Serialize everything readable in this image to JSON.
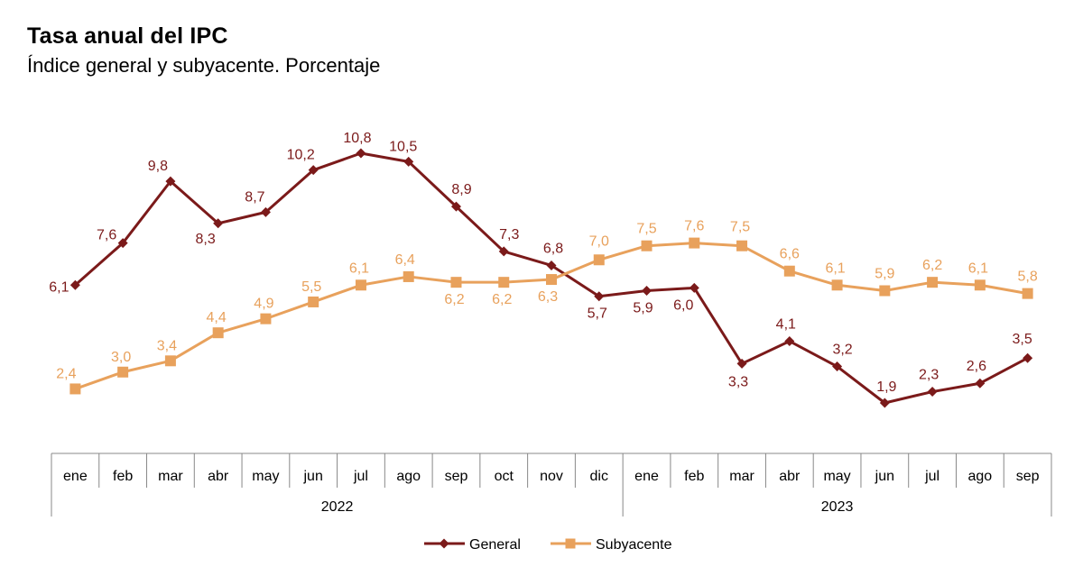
{
  "chart_data": {
    "type": "line",
    "title": "Tasa anual del IPC",
    "subtitle": "Índice general y subyacente. Porcentaje",
    "categories": [
      "ene",
      "feb",
      "mar",
      "abr",
      "may",
      "jun",
      "jul",
      "ago",
      "sep",
      "oct",
      "nov",
      "dic",
      "ene",
      "feb",
      "mar",
      "abr",
      "may",
      "jun",
      "jul",
      "ago",
      "sep"
    ],
    "years": [
      {
        "label": "2022",
        "start": 0,
        "end": 11
      },
      {
        "label": "2023",
        "start": 12,
        "end": 20
      }
    ],
    "series": [
      {
        "name": "General",
        "color": "#7B1A1A",
        "marker": "diamond",
        "values": [
          6.1,
          7.6,
          9.8,
          8.3,
          8.7,
          10.2,
          10.8,
          10.5,
          8.9,
          7.3,
          6.8,
          5.7,
          5.9,
          6.0,
          3.3,
          4.1,
          3.2,
          1.9,
          2.3,
          2.6,
          3.5
        ],
        "labels": [
          "6,1",
          "7,6",
          "9,8",
          "8,3",
          "8,7",
          "10,2",
          "10,8",
          "10,5",
          "8,9",
          "7,3",
          "6,8",
          "5,7",
          "5,9",
          "6,0",
          "3,3",
          "4,1",
          "3,2",
          "1,9",
          "2,3",
          "2,6",
          "3,5"
        ]
      },
      {
        "name": "Subyacente",
        "color": "#E8A15C",
        "marker": "square",
        "values": [
          2.4,
          3.0,
          3.4,
          4.4,
          4.9,
          5.5,
          6.1,
          6.4,
          6.2,
          6.2,
          6.3,
          7.0,
          7.5,
          7.6,
          7.5,
          6.6,
          6.1,
          5.9,
          6.2,
          6.1,
          5.8
        ],
        "labels": [
          "2,4",
          "3,0",
          "3,4",
          "4,4",
          "4,9",
          "5,5",
          "6,1",
          "6,4",
          "6,2",
          "6,2",
          "6,3",
          "7,0",
          "7,5",
          "7,6",
          "7,5",
          "6,6",
          "6,1",
          "5,9",
          "6,2",
          "6,1",
          "5,8"
        ]
      }
    ],
    "ylim": [
      0,
      12
    ],
    "grid": false,
    "legend": "bottom-center",
    "label_colors": {
      "General": "#7B1A1A",
      "Subyacente": "#E8A15C"
    }
  }
}
